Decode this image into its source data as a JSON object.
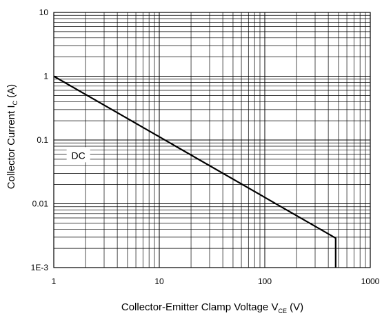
{
  "chart_data": {
    "type": "line",
    "title": "",
    "xlabel": {
      "main": "Collector-Emitter Clamp Voltage V",
      "sub": "CE",
      "unit": " (V)"
    },
    "ylabel": {
      "main": "Collector Current I",
      "sub": "C",
      "unit": " (A)"
    },
    "x_scale": "log",
    "y_scale": "log",
    "xlim": [
      1,
      1000
    ],
    "ylim": [
      0.001,
      10
    ],
    "x_ticks": [
      {
        "value": 1,
        "label": "1"
      },
      {
        "value": 10,
        "label": "10"
      },
      {
        "value": 100,
        "label": "100"
      },
      {
        "value": 1000,
        "label": "1000"
      }
    ],
    "y_ticks": [
      {
        "value": 0.001,
        "label": "1E-3"
      },
      {
        "value": 0.01,
        "label": "0.01"
      },
      {
        "value": 0.1,
        "label": "0.1"
      },
      {
        "value": 1,
        "label": "1"
      },
      {
        "value": 10,
        "label": "10"
      }
    ],
    "grid": true,
    "annotations": [
      {
        "text": "DC",
        "x": 1.9,
        "y": 0.07
      }
    ],
    "series": [
      {
        "x": [
          1,
          470,
          470
        ],
        "y": [
          1,
          0.0029,
          0.001
        ]
      }
    ]
  }
}
